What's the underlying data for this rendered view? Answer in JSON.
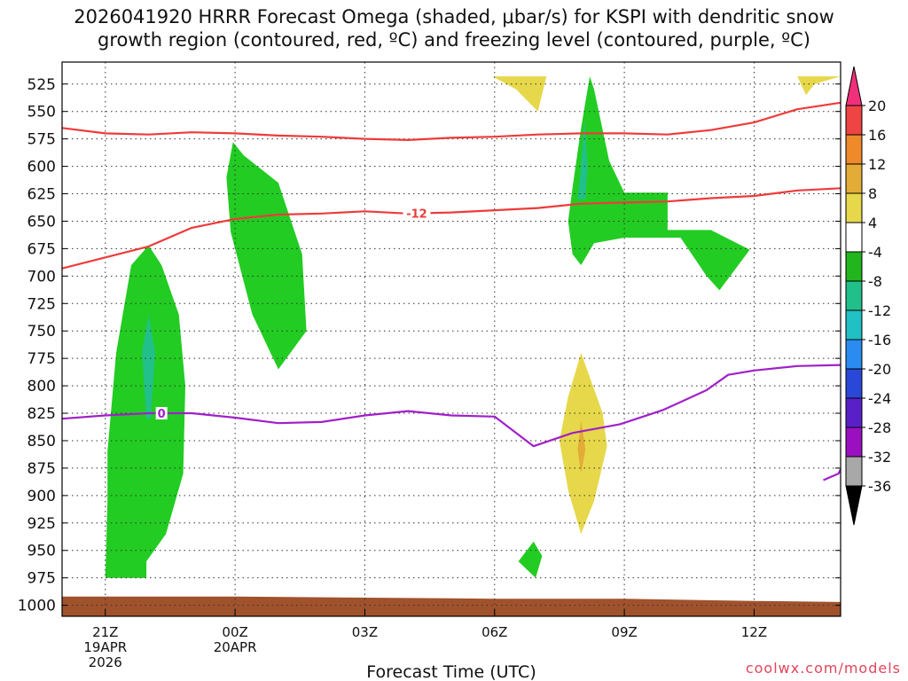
{
  "chart_data": {
    "type": "heatmap",
    "title_lines": [
      "2026041920 HRRR Forecast Omega (shaded, μbar/s) for KSPI with dendritic snow",
      "growth region (contoured, red, ºC) and freezing level (contoured, purple, ºC)"
    ],
    "xlabel": "Forecast Time (UTC)",
    "ylabel": "",
    "x_range_hours": [
      -1,
      17
    ],
    "y_range_hpa": [
      1010,
      505
    ],
    "y_ticks": [
      525,
      550,
      575,
      600,
      625,
      650,
      675,
      700,
      725,
      750,
      775,
      800,
      825,
      850,
      875,
      900,
      925,
      950,
      975,
      1000
    ],
    "x_ticks": [
      {
        "hour": 0,
        "lines": [
          "21Z",
          "19APR",
          "2026"
        ]
      },
      {
        "hour": 3,
        "lines": [
          "00Z",
          "20APR"
        ]
      },
      {
        "hour": 6,
        "lines": [
          "03Z"
        ]
      },
      {
        "hour": 9,
        "lines": [
          "06Z"
        ]
      },
      {
        "hour": 12,
        "lines": [
          "09Z"
        ]
      },
      {
        "hour": 15,
        "lines": [
          "12Z"
        ]
      }
    ],
    "grid": true,
    "colorbar": {
      "labels": [
        "20",
        "16",
        "12",
        "8",
        "4",
        "-4",
        "-8",
        "-12",
        "-16",
        "-20",
        "-24",
        "-28",
        "-32",
        "-36"
      ],
      "colors": [
        "#f0307a",
        "#ef4444",
        "#ee8a2a",
        "#e2ac36",
        "#e6d84a",
        "#ffffff",
        "#22b51e",
        "#21c08a",
        "#21c0c4",
        "#2a8cf0",
        "#2a48d8",
        "#5a20c8",
        "#9a10c0",
        "#a8a8a8",
        "#000000"
      ]
    },
    "omega_regions": [
      {
        "level": "-8 to -4",
        "color": "#22cc22",
        "points": [
          [
            0,
            975
          ],
          [
            0.95,
            975
          ],
          [
            0.95,
            960
          ],
          [
            1.4,
            935
          ],
          [
            1.8,
            880
          ],
          [
            1.85,
            800
          ],
          [
            1.7,
            735
          ],
          [
            1.3,
            690
          ],
          [
            1,
            672
          ],
          [
            0.6,
            690
          ],
          [
            0.25,
            770
          ],
          [
            0.05,
            860
          ],
          [
            0.05,
            905
          ]
        ]
      },
      {
        "level": "-12 to -8",
        "color": "#21c08a",
        "points": [
          [
            0.95,
            830
          ],
          [
            1.05,
            830
          ],
          [
            1.15,
            770
          ],
          [
            1.0,
            735
          ],
          [
            0.85,
            770
          ]
        ]
      },
      {
        "level": "-8 to -4",
        "color": "#22cc22",
        "points": [
          [
            2.8,
            610
          ],
          [
            2.95,
            578
          ],
          [
            3.2,
            590
          ],
          [
            4.0,
            615
          ],
          [
            4.55,
            680
          ],
          [
            4.65,
            750
          ],
          [
            4.0,
            785
          ],
          [
            3.4,
            735
          ],
          [
            2.9,
            660
          ]
        ]
      },
      {
        "level": "-8 to -4",
        "color": "#22cc22",
        "points": [
          [
            10.7,
            650
          ],
          [
            10.8,
            620
          ],
          [
            11.0,
            565
          ],
          [
            11.2,
            518
          ],
          [
            11.3,
            530
          ],
          [
            11.65,
            595
          ],
          [
            12.0,
            624
          ],
          [
            13.0,
            624
          ],
          [
            13.0,
            658
          ],
          [
            14.0,
            658
          ],
          [
            14.9,
            676
          ],
          [
            14.2,
            713
          ],
          [
            13.9,
            700
          ],
          [
            13.3,
            665
          ],
          [
            13.0,
            665
          ],
          [
            12.0,
            665
          ],
          [
            11.3,
            670
          ],
          [
            11.0,
            690
          ],
          [
            10.8,
            680
          ]
        ]
      },
      {
        "level": "-12 to -8",
        "color": "#21c08a",
        "points": [
          [
            10.92,
            630
          ],
          [
            11.0,
            600
          ],
          [
            11.08,
            557
          ],
          [
            11.15,
            600
          ],
          [
            11.1,
            630
          ]
        ]
      },
      {
        "level": "-8 to -4",
        "color": "#22cc22",
        "points": [
          [
            9.55,
            960
          ],
          [
            9.9,
            942
          ],
          [
            10.1,
            955
          ],
          [
            9.95,
            975
          ]
        ]
      },
      {
        "level": "4 to 8",
        "color": "#e6d84a",
        "points": [
          [
            8.95,
            518
          ],
          [
            10.2,
            518
          ],
          [
            10.0,
            550
          ],
          [
            9.5,
            530
          ]
        ]
      },
      {
        "level": "4 to 8",
        "color": "#e6d84a",
        "points": [
          [
            16.0,
            518
          ],
          [
            17.0,
            518
          ],
          [
            16.4,
            525
          ],
          [
            16.2,
            535
          ]
        ]
      },
      {
        "level": "4 to 8",
        "color": "#e6d84a",
        "points": [
          [
            11.0,
            770
          ],
          [
            11.5,
            825
          ],
          [
            11.6,
            855
          ],
          [
            11.3,
            905
          ],
          [
            11.0,
            935
          ],
          [
            10.7,
            895
          ],
          [
            10.5,
            850
          ],
          [
            10.7,
            810
          ]
        ]
      },
      {
        "level": "8 to 12",
        "color": "#e2ac36",
        "points": [
          [
            11.0,
            832
          ],
          [
            11.1,
            858
          ],
          [
            11.0,
            880
          ],
          [
            10.92,
            858
          ]
        ]
      }
    ],
    "contours": [
      {
        "name": "-12",
        "color": "#ee3b3b",
        "label": "-12",
        "x": [
          -1,
          0,
          1,
          2,
          3,
          4,
          5,
          6,
          7,
          8,
          9,
          10,
          11,
          12,
          13,
          14,
          15,
          16,
          17
        ],
        "y": [
          693,
          683,
          673,
          656,
          648,
          644,
          643,
          641,
          643,
          642,
          640,
          638,
          634,
          633,
          632,
          629,
          627,
          622,
          620
        ]
      },
      {
        "name": "-16",
        "color": "#ee3b3b",
        "label": "",
        "x": [
          -1,
          0,
          1,
          2,
          3,
          4,
          5,
          6,
          7,
          8,
          9,
          10,
          11,
          12,
          13,
          14,
          15,
          16,
          17
        ],
        "y": [
          565,
          570,
          571,
          569,
          570,
          572,
          573,
          575,
          576,
          574,
          573,
          571,
          570,
          570,
          571,
          567,
          560,
          548,
          542
        ]
      },
      {
        "name": "0",
        "color": "#a020c8",
        "label": "0",
        "x": [
          -1,
          0,
          1,
          2,
          3,
          4,
          5,
          6,
          7,
          8,
          9,
          9.9,
          10.8,
          11.9,
          12.9,
          13.9,
          14.4,
          15,
          16,
          17
        ],
        "y": [
          830,
          827,
          825,
          825,
          829,
          834,
          833,
          827,
          823,
          827,
          828,
          855,
          843,
          835,
          822,
          804,
          790,
          786,
          782,
          781
        ]
      },
      {
        "name": "0-east",
        "color": "#a020c8",
        "label": "",
        "x": [
          16.6,
          16.95,
          17
        ],
        "y": [
          886,
          880,
          876
        ]
      }
    ],
    "ground": {
      "color": "#a0522d",
      "x": [
        -1,
        3,
        6,
        9,
        12,
        15,
        17
      ],
      "top_hpa": [
        992,
        992,
        993,
        994,
        994,
        996,
        997
      ]
    }
  },
  "credit": "coolwx.com/models"
}
